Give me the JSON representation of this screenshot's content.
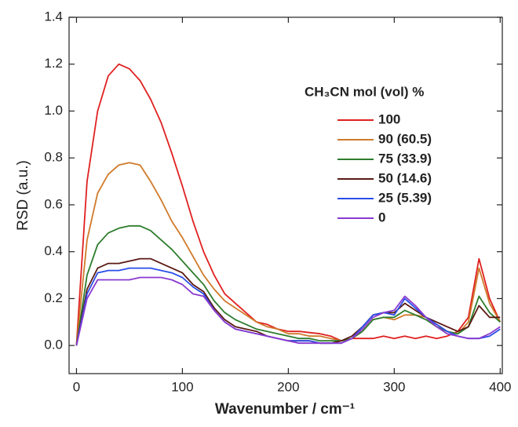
{
  "chart_data": {
    "type": "line",
    "x_label": "Wavenumber / cm⁻¹",
    "y_label": "RSD (a.u.)",
    "legend_title": "CH₃CN mol (vol) %",
    "legend": "right",
    "x": [
      0,
      10,
      20,
      30,
      40,
      50,
      60,
      70,
      80,
      90,
      100,
      110,
      120,
      130,
      140,
      150,
      160,
      170,
      180,
      190,
      200,
      210,
      220,
      230,
      240,
      250,
      260,
      270,
      280,
      290,
      300,
      310,
      320,
      330,
      340,
      350,
      360,
      370,
      380,
      390,
      400
    ],
    "series": [
      {
        "name": "100",
        "color": "#e02020",
        "values": [
          0,
          0.7,
          1.0,
          1.15,
          1.2,
          1.18,
          1.13,
          1.05,
          0.95,
          0.82,
          0.68,
          0.53,
          0.4,
          0.3,
          0.22,
          0.18,
          0.14,
          0.1,
          0.09,
          0.07,
          0.06,
          0.06,
          0.055,
          0.05,
          0.04,
          0.02,
          0.03,
          0.03,
          0.03,
          0.04,
          0.03,
          0.04,
          0.03,
          0.04,
          0.03,
          0.04,
          0.06,
          0.12,
          0.37,
          0.2,
          0.1
        ]
      },
      {
        "name": "90 (60.5)",
        "color": "#d07a2a",
        "values": [
          0,
          0.45,
          0.65,
          0.73,
          0.77,
          0.78,
          0.77,
          0.7,
          0.62,
          0.53,
          0.46,
          0.38,
          0.3,
          0.24,
          0.19,
          0.16,
          0.13,
          0.1,
          0.08,
          0.07,
          0.05,
          0.05,
          0.04,
          0.04,
          0.03,
          0.02,
          0.03,
          0.06,
          0.11,
          0.12,
          0.11,
          0.13,
          0.13,
          0.12,
          0.09,
          0.06,
          0.05,
          0.1,
          0.33,
          0.18,
          0.1
        ]
      },
      {
        "name": "75 (33.9)",
        "color": "#2e7d2e",
        "values": [
          0,
          0.3,
          0.43,
          0.48,
          0.5,
          0.51,
          0.51,
          0.49,
          0.45,
          0.41,
          0.36,
          0.31,
          0.26,
          0.19,
          0.14,
          0.11,
          0.09,
          0.07,
          0.06,
          0.05,
          0.04,
          0.03,
          0.03,
          0.02,
          0.02,
          0.02,
          0.03,
          0.06,
          0.11,
          0.12,
          0.12,
          0.15,
          0.13,
          0.11,
          0.08,
          0.06,
          0.05,
          0.08,
          0.21,
          0.14,
          0.1
        ]
      },
      {
        "name": "50 (14.6)",
        "color": "#5a1a14",
        "values": [
          0,
          0.24,
          0.33,
          0.35,
          0.35,
          0.36,
          0.37,
          0.37,
          0.35,
          0.33,
          0.31,
          0.26,
          0.23,
          0.16,
          0.11,
          0.08,
          0.07,
          0.06,
          0.04,
          0.03,
          0.02,
          0.02,
          0.02,
          0.01,
          0.01,
          0.02,
          0.04,
          0.08,
          0.13,
          0.14,
          0.14,
          0.18,
          0.15,
          0.12,
          0.1,
          0.08,
          0.06,
          0.08,
          0.17,
          0.12,
          0.12
        ]
      },
      {
        "name": "25 (5.39)",
        "color": "#2a4ee8",
        "values": [
          0,
          0.22,
          0.31,
          0.32,
          0.32,
          0.33,
          0.33,
          0.33,
          0.32,
          0.31,
          0.29,
          0.25,
          0.22,
          0.15,
          0.1,
          0.07,
          0.06,
          0.05,
          0.04,
          0.03,
          0.02,
          0.02,
          0.02,
          0.01,
          0.01,
          0.01,
          0.03,
          0.08,
          0.13,
          0.14,
          0.13,
          0.2,
          0.16,
          0.12,
          0.09,
          0.06,
          0.04,
          0.03,
          0.03,
          0.04,
          0.07
        ]
      },
      {
        "name": "0",
        "color": "#8a3ad0",
        "values": [
          0,
          0.2,
          0.28,
          0.28,
          0.28,
          0.28,
          0.29,
          0.29,
          0.29,
          0.28,
          0.26,
          0.22,
          0.21,
          0.15,
          0.1,
          0.07,
          0.06,
          0.05,
          0.04,
          0.03,
          0.02,
          0.01,
          0.01,
          0.01,
          0.01,
          0.01,
          0.03,
          0.07,
          0.12,
          0.14,
          0.15,
          0.21,
          0.17,
          0.12,
          0.08,
          0.05,
          0.04,
          0.03,
          0.03,
          0.05,
          0.08
        ]
      }
    ],
    "xlim": [
      -7,
      402
    ],
    "ylim": [
      -0.12,
      1.4
    ],
    "xticks": [
      0,
      100,
      200,
      300,
      400
    ],
    "yticks": [
      {
        "value": 0,
        "label": "0.0"
      },
      0.2,
      0.4,
      0.6,
      0.8,
      {
        "value": 1,
        "label": "1.0"
      },
      1.2,
      1.4
    ]
  }
}
